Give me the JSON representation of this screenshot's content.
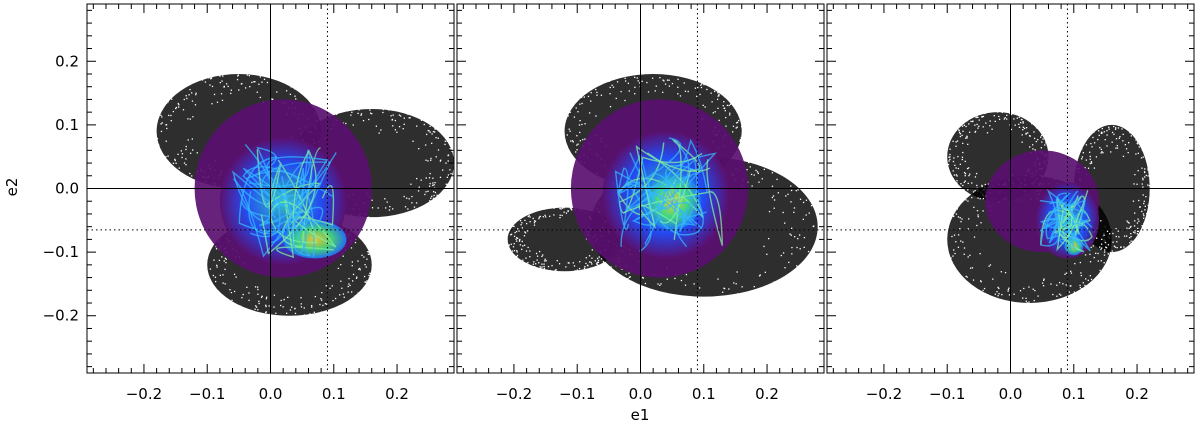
{
  "chart_data": {
    "type": "scatter",
    "xlabel": "e1",
    "ylabel": "e2",
    "xlim": [
      -0.29,
      0.29
    ],
    "ylim": [
      -0.29,
      0.29
    ],
    "x_ticks": [
      "-0.2",
      "-0.1",
      "0.0",
      "0.1",
      "0.2"
    ],
    "y_ticks": [
      "-0.2",
      "-0.1",
      "0.0",
      "0.1",
      "0.2"
    ],
    "x_tick_values": [
      -0.2,
      -0.1,
      0.0,
      0.1,
      0.2
    ],
    "y_tick_values": [
      -0.2,
      -0.1,
      0.0,
      0.1,
      0.2
    ],
    "reference_lines": {
      "solid": {
        "x": 0.0,
        "y": 0.0
      },
      "dotted": {
        "x": 0.09,
        "y": -0.065
      }
    },
    "colors": {
      "scatter": "#000000",
      "low": "#5a1070",
      "mid": "#1e50ff",
      "high": "#ffd21e",
      "peak": "#ff3a1a"
    },
    "panels": [
      {
        "id": "left",
        "regions": [
          {
            "kind": "scatter",
            "cx": -0.05,
            "cy": 0.09,
            "rx": 0.13,
            "ry": 0.09
          },
          {
            "kind": "scatter",
            "cx": 0.16,
            "cy": 0.04,
            "rx": 0.13,
            "ry": 0.085
          },
          {
            "kind": "scatter",
            "cx": 0.03,
            "cy": -0.12,
            "rx": 0.13,
            "ry": 0.08
          },
          {
            "kind": "density",
            "cx": 0.02,
            "cy": 0.0,
            "rx": 0.14,
            "ry": 0.14,
            "level": 0.18
          },
          {
            "kind": "density",
            "cx": 0.02,
            "cy": -0.02,
            "rx": 0.1,
            "ry": 0.1,
            "level": 0.45
          },
          {
            "kind": "density",
            "cx": 0.07,
            "cy": -0.08,
            "rx": 0.05,
            "ry": 0.03,
            "level": 0.7
          }
        ]
      },
      {
        "id": "middle",
        "regions": [
          {
            "kind": "scatter",
            "cx": 0.02,
            "cy": 0.09,
            "rx": 0.14,
            "ry": 0.09
          },
          {
            "kind": "scatter",
            "cx": -0.12,
            "cy": -0.08,
            "rx": 0.09,
            "ry": 0.05
          },
          {
            "kind": "scatter",
            "cx": 0.1,
            "cy": -0.06,
            "rx": 0.18,
            "ry": 0.11
          },
          {
            "kind": "density",
            "cx": 0.03,
            "cy": 0.0,
            "rx": 0.14,
            "ry": 0.14,
            "level": 0.2
          },
          {
            "kind": "density",
            "cx": 0.04,
            "cy": -0.01,
            "rx": 0.1,
            "ry": 0.1,
            "level": 0.5
          },
          {
            "kind": "density",
            "cx": 0.05,
            "cy": -0.02,
            "rx": 0.045,
            "ry": 0.045,
            "level": 0.85
          }
        ]
      },
      {
        "id": "right",
        "regions": [
          {
            "kind": "scatter",
            "cx": -0.02,
            "cy": 0.05,
            "rx": 0.08,
            "ry": 0.07
          },
          {
            "kind": "scatter",
            "cx": 0.03,
            "cy": -0.08,
            "rx": 0.13,
            "ry": 0.1
          },
          {
            "kind": "scatter",
            "cx": 0.16,
            "cy": 0.0,
            "rx": 0.06,
            "ry": 0.1
          },
          {
            "kind": "density",
            "cx": 0.05,
            "cy": -0.02,
            "rx": 0.09,
            "ry": 0.08,
            "level": 0.18
          },
          {
            "kind": "density",
            "cx": 0.09,
            "cy": -0.05,
            "rx": 0.05,
            "ry": 0.06,
            "level": 0.5
          },
          {
            "kind": "density",
            "cx": 0.1,
            "cy": -0.09,
            "rx": 0.015,
            "ry": 0.015,
            "level": 0.8
          }
        ]
      }
    ]
  }
}
